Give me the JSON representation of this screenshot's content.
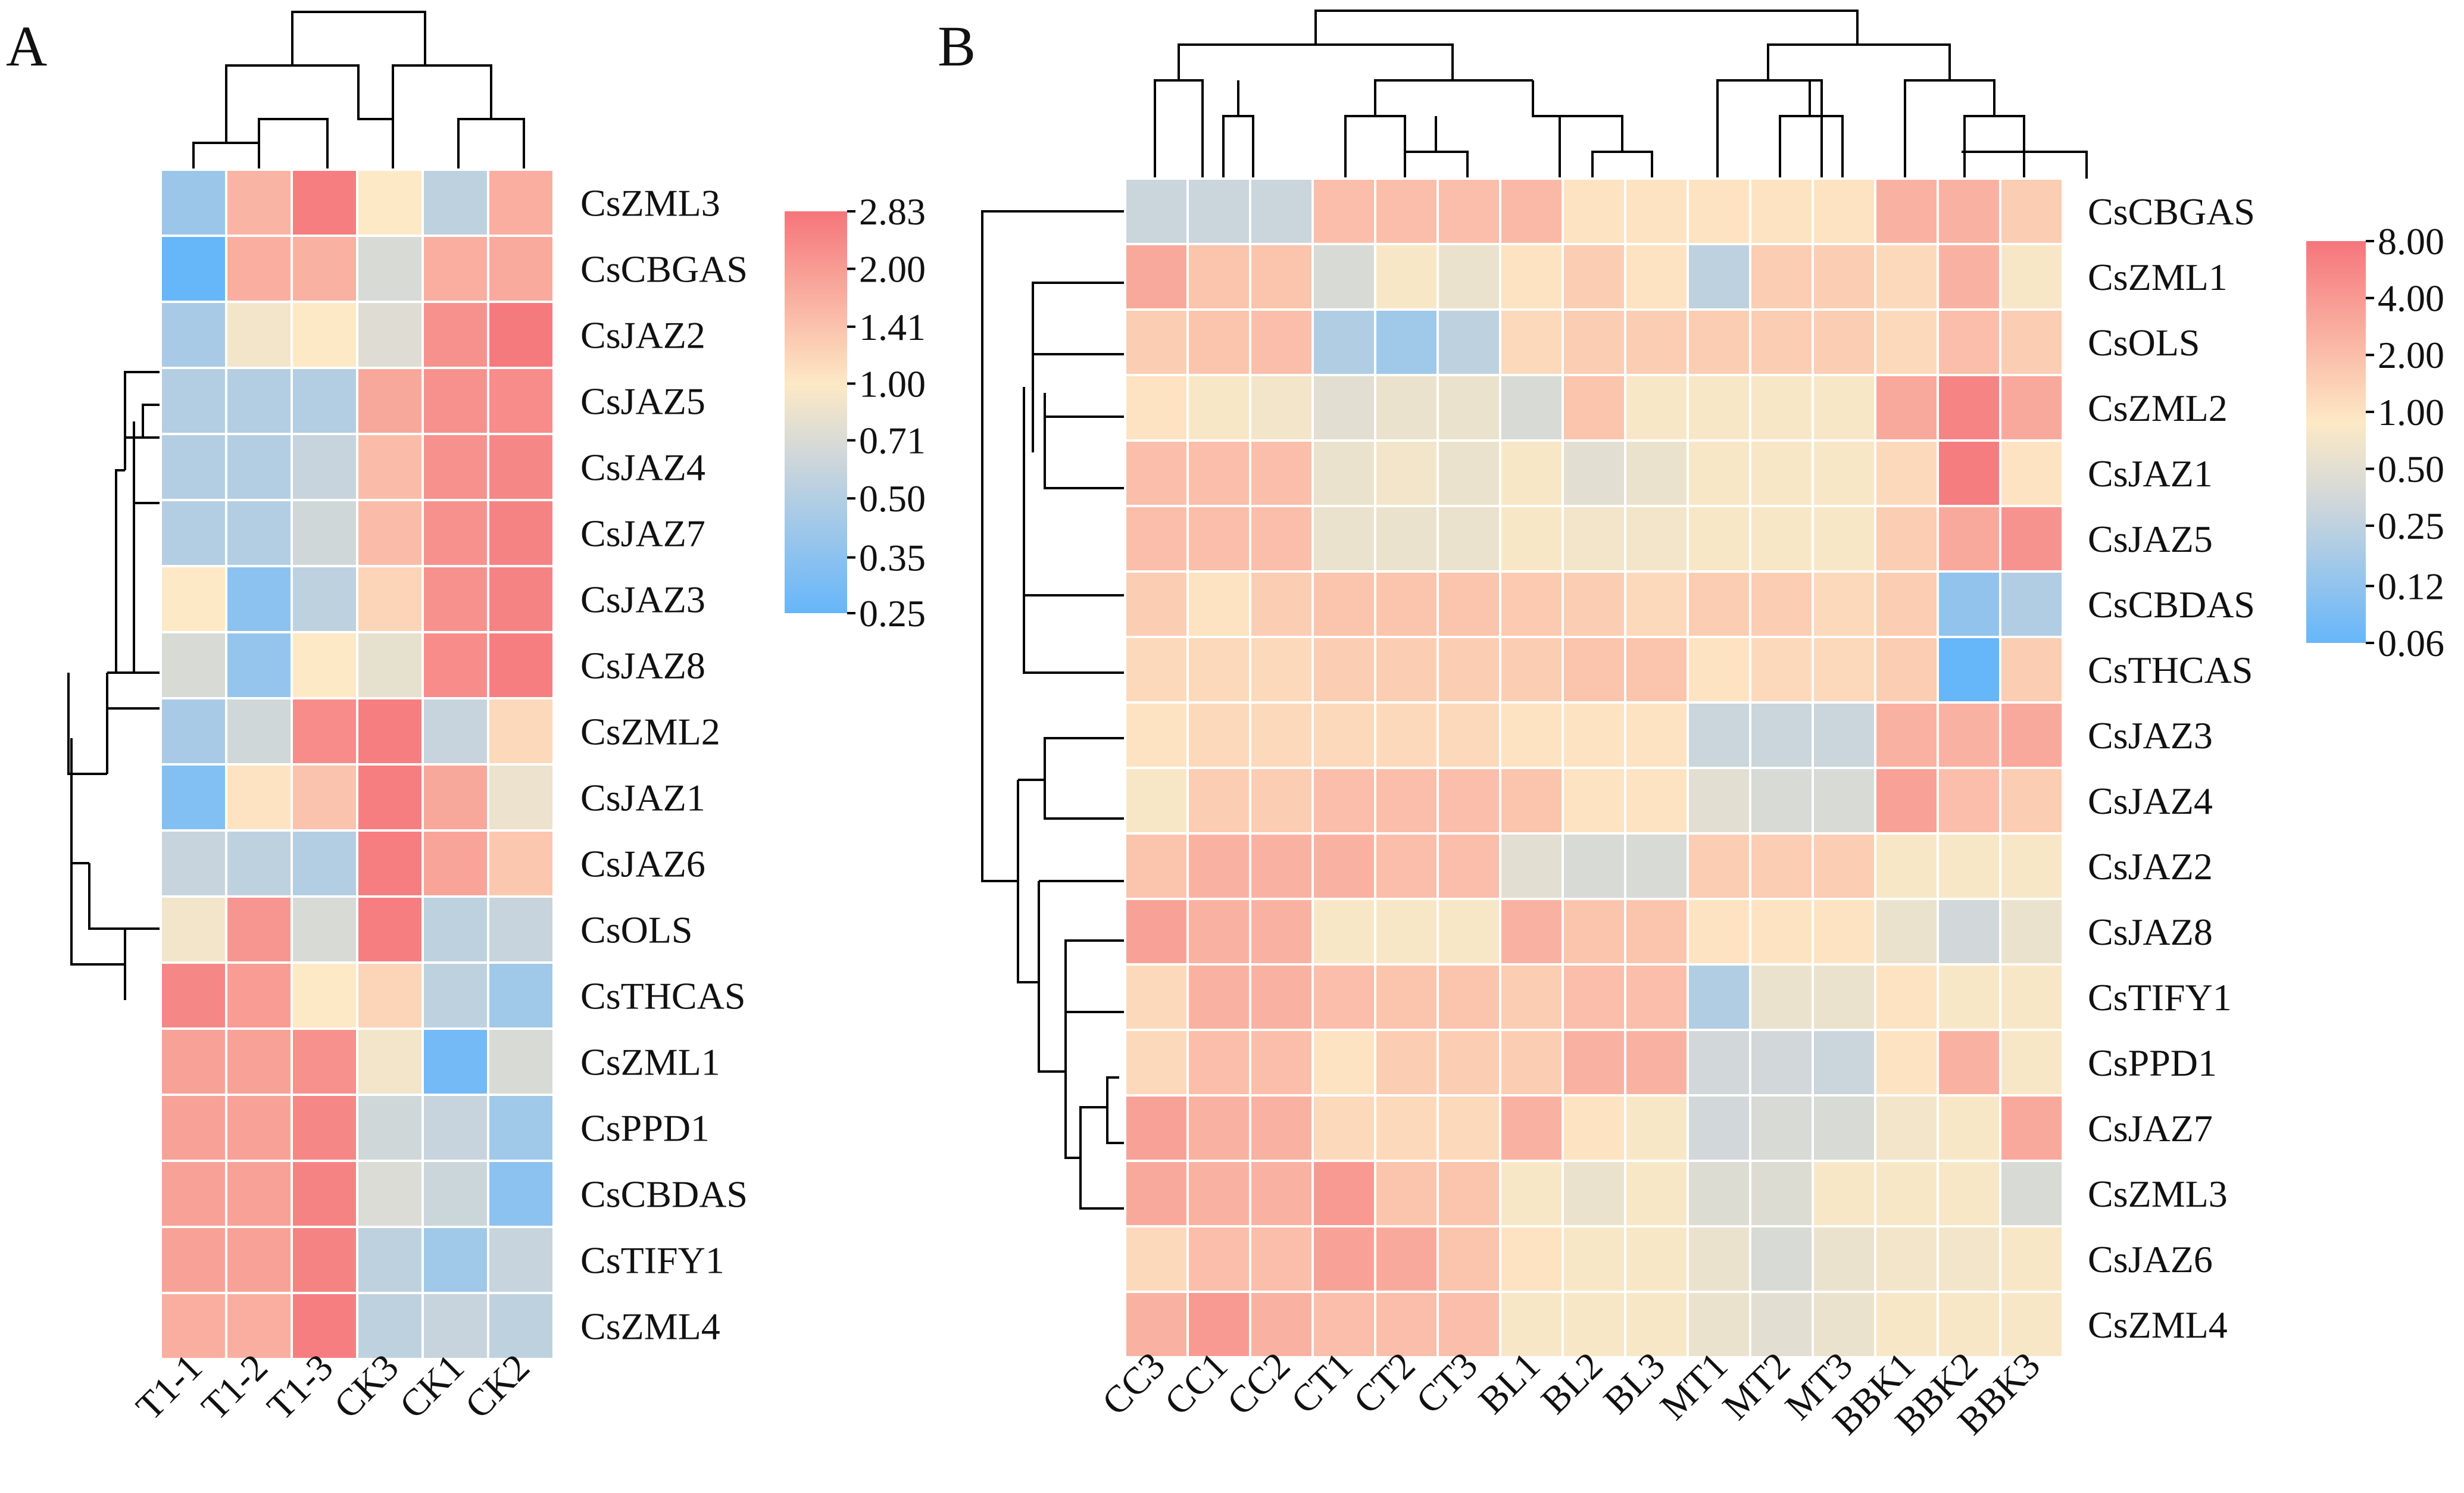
{
  "chart_data": [
    {
      "type": "heatmap",
      "panel_label": "A",
      "columns": [
        "T1-1",
        "T1-2",
        "T1-3",
        "CK3",
        "CK1",
        "CK2"
      ],
      "rows": [
        "CsZML3",
        "CsCBGAS",
        "CsJAZ2",
        "CsJAZ5",
        "CsJAZ4",
        "CsJAZ7",
        "CsJAZ3",
        "CsJAZ8",
        "CsZML2",
        "CsJAZ1",
        "CsJAZ6",
        "CsOLS",
        "CsTHCAS",
        "CsZML1",
        "CsPPD1",
        "CsCBDAS",
        "CsTIFY1",
        "CsZML4"
      ],
      "values": [
        [
          0.4,
          1.6,
          2.6,
          1.0,
          0.55,
          1.7
        ],
        [
          0.25,
          1.7,
          1.65,
          0.7,
          1.7,
          1.75
        ],
        [
          0.45,
          0.9,
          1.0,
          0.75,
          2.2,
          2.7
        ],
        [
          0.5,
          0.5,
          0.5,
          1.8,
          2.2,
          2.3
        ],
        [
          0.5,
          0.5,
          0.6,
          1.5,
          2.2,
          2.4
        ],
        [
          0.5,
          0.5,
          0.65,
          1.5,
          2.2,
          2.5
        ],
        [
          1.0,
          0.35,
          0.55,
          1.2,
          2.2,
          2.5
        ],
        [
          0.7,
          0.38,
          1.0,
          0.8,
          2.3,
          2.6
        ],
        [
          0.45,
          0.65,
          2.3,
          2.6,
          0.6,
          1.15
        ],
        [
          0.32,
          1.05,
          1.4,
          2.6,
          1.8,
          0.85
        ],
        [
          0.6,
          0.55,
          0.5,
          2.6,
          1.85,
          1.35
        ],
        [
          0.9,
          2.1,
          0.7,
          2.6,
          0.55,
          0.6
        ],
        [
          2.4,
          2.0,
          1.0,
          1.2,
          0.55,
          0.42
        ],
        [
          1.9,
          1.9,
          2.2,
          0.9,
          0.28,
          0.7
        ],
        [
          1.9,
          1.9,
          2.4,
          0.65,
          0.6,
          0.42
        ],
        [
          1.9,
          1.9,
          2.5,
          0.72,
          0.62,
          0.35
        ],
        [
          1.9,
          1.9,
          2.5,
          0.55,
          0.42,
          0.6
        ],
        [
          1.7,
          1.7,
          2.6,
          0.55,
          0.6,
          0.55
        ]
      ],
      "colorbar": {
        "tick_labels": [
          "2.83",
          "2.00",
          "1.41",
          "1.00",
          "0.71",
          "0.50",
          "0.35",
          "0.25"
        ],
        "ticks": [
          2.83,
          2.0,
          1.41,
          1.0,
          0.71,
          0.5,
          0.35,
          0.25
        ],
        "scale": "log2",
        "range": [
          0.25,
          2.83
        ]
      },
      "colormap": [
        "#66b6fa",
        "#cdd6db",
        "#fde9c5",
        "#f5757b"
      ]
    },
    {
      "type": "heatmap",
      "panel_label": "B",
      "columns": [
        "CC3",
        "CC1",
        "CC2",
        "CT1",
        "CT2",
        "CT3",
        "BL1",
        "BL2",
        "BL3",
        "MT1",
        "MT2",
        "MT3",
        "BBK1",
        "BBK2",
        "BBK3"
      ],
      "rows": [
        "CsCBGAS",
        "CsZML1",
        "CsOLS",
        "CsZML2",
        "CsJAZ1",
        "CsJAZ5",
        "CsCBDAS",
        "CsTHCAS",
        "CsJAZ3",
        "CsJAZ4",
        "CsJAZ2",
        "CsJAZ8",
        "CsTIFY1",
        "CsPPD1",
        "CsJAZ7",
        "CsZML3",
        "CsJAZ6",
        "CsZML4"
      ],
      "values": [
        [
          0.3,
          0.3,
          0.3,
          2.0,
          2.0,
          2.0,
          2.2,
          1.0,
          1.0,
          1.0,
          1.0,
          1.0,
          2.5,
          2.5,
          1.5
        ],
        [
          3.0,
          1.8,
          1.8,
          0.4,
          0.8,
          0.6,
          1.0,
          1.5,
          1.0,
          0.25,
          1.5,
          1.5,
          1.2,
          2.5,
          0.8
        ],
        [
          1.5,
          1.8,
          2.0,
          0.2,
          0.15,
          0.25,
          1.2,
          1.5,
          1.5,
          1.5,
          1.5,
          1.5,
          1.2,
          2.0,
          1.5
        ],
        [
          1.0,
          0.8,
          0.7,
          0.5,
          0.6,
          0.6,
          0.4,
          1.8,
          0.8,
          0.8,
          0.8,
          0.8,
          3.0,
          6.0,
          3.0
        ],
        [
          2.0,
          2.0,
          2.0,
          0.6,
          0.7,
          0.6,
          0.8,
          0.5,
          0.6,
          0.8,
          0.8,
          0.8,
          1.2,
          7.0,
          1.0
        ],
        [
          2.0,
          2.0,
          2.0,
          0.6,
          0.6,
          0.6,
          0.8,
          0.7,
          0.7,
          0.8,
          0.8,
          0.8,
          1.5,
          3.0,
          4.5
        ],
        [
          1.5,
          1.0,
          1.5,
          1.8,
          1.8,
          1.8,
          1.6,
          1.5,
          1.2,
          1.5,
          1.5,
          1.2,
          1.5,
          0.12,
          0.2
        ],
        [
          1.2,
          1.2,
          1.2,
          1.5,
          1.5,
          1.5,
          1.5,
          1.8,
          1.8,
          1.0,
          1.2,
          1.2,
          1.5,
          0.06,
          1.5
        ],
        [
          1.0,
          1.2,
          1.2,
          1.2,
          1.2,
          1.2,
          1.0,
          1.0,
          1.0,
          0.3,
          0.3,
          0.3,
          2.5,
          2.5,
          3.0
        ],
        [
          0.8,
          1.5,
          1.5,
          2.0,
          2.0,
          2.0,
          1.8,
          1.0,
          1.0,
          0.5,
          0.4,
          0.4,
          3.5,
          2.0,
          1.5
        ],
        [
          1.8,
          2.5,
          2.5,
          2.5,
          2.0,
          2.0,
          0.5,
          0.4,
          0.4,
          1.5,
          1.5,
          1.5,
          0.8,
          0.8,
          0.8
        ],
        [
          3.5,
          2.5,
          2.5,
          0.8,
          0.8,
          0.8,
          2.5,
          1.8,
          1.8,
          1.0,
          1.0,
          1.0,
          0.6,
          0.35,
          0.6
        ],
        [
          1.2,
          2.5,
          2.5,
          2.0,
          1.8,
          1.8,
          1.5,
          2.0,
          2.0,
          0.2,
          0.6,
          0.6,
          1.0,
          0.8,
          0.8
        ],
        [
          1.2,
          2.0,
          2.0,
          1.0,
          1.5,
          1.5,
          1.5,
          2.5,
          2.5,
          0.35,
          0.35,
          0.3,
          1.0,
          2.5,
          0.8
        ],
        [
          3.5,
          2.5,
          2.5,
          1.2,
          1.2,
          1.2,
          2.5,
          1.0,
          0.8,
          0.35,
          0.4,
          0.4,
          0.7,
          0.8,
          3.0
        ],
        [
          3.0,
          2.5,
          2.5,
          4.0,
          1.8,
          1.8,
          0.8,
          0.6,
          0.8,
          0.45,
          0.45,
          0.8,
          0.8,
          0.8,
          0.4
        ],
        [
          1.2,
          2.0,
          2.0,
          3.5,
          3.0,
          1.8,
          1.0,
          0.8,
          0.8,
          0.6,
          0.4,
          0.6,
          0.7,
          0.7,
          0.8
        ],
        [
          2.5,
          4.0,
          2.5,
          2.0,
          2.0,
          2.0,
          0.8,
          0.8,
          0.8,
          0.6,
          0.5,
          0.6,
          0.8,
          0.8,
          0.8
        ]
      ],
      "colorbar": {
        "tick_labels": [
          "8.00",
          "4.00",
          "2.00",
          "1.00",
          "0.50",
          "0.25",
          "0.12",
          "0.06"
        ],
        "ticks": [
          8,
          4,
          2,
          1,
          0.5,
          0.25,
          0.12,
          0.06
        ],
        "scale": "log2",
        "range": [
          0.06,
          8
        ]
      },
      "colormap": [
        "#66b6fa",
        "#cdd6db",
        "#fde9c5",
        "#f5757b"
      ]
    }
  ]
}
